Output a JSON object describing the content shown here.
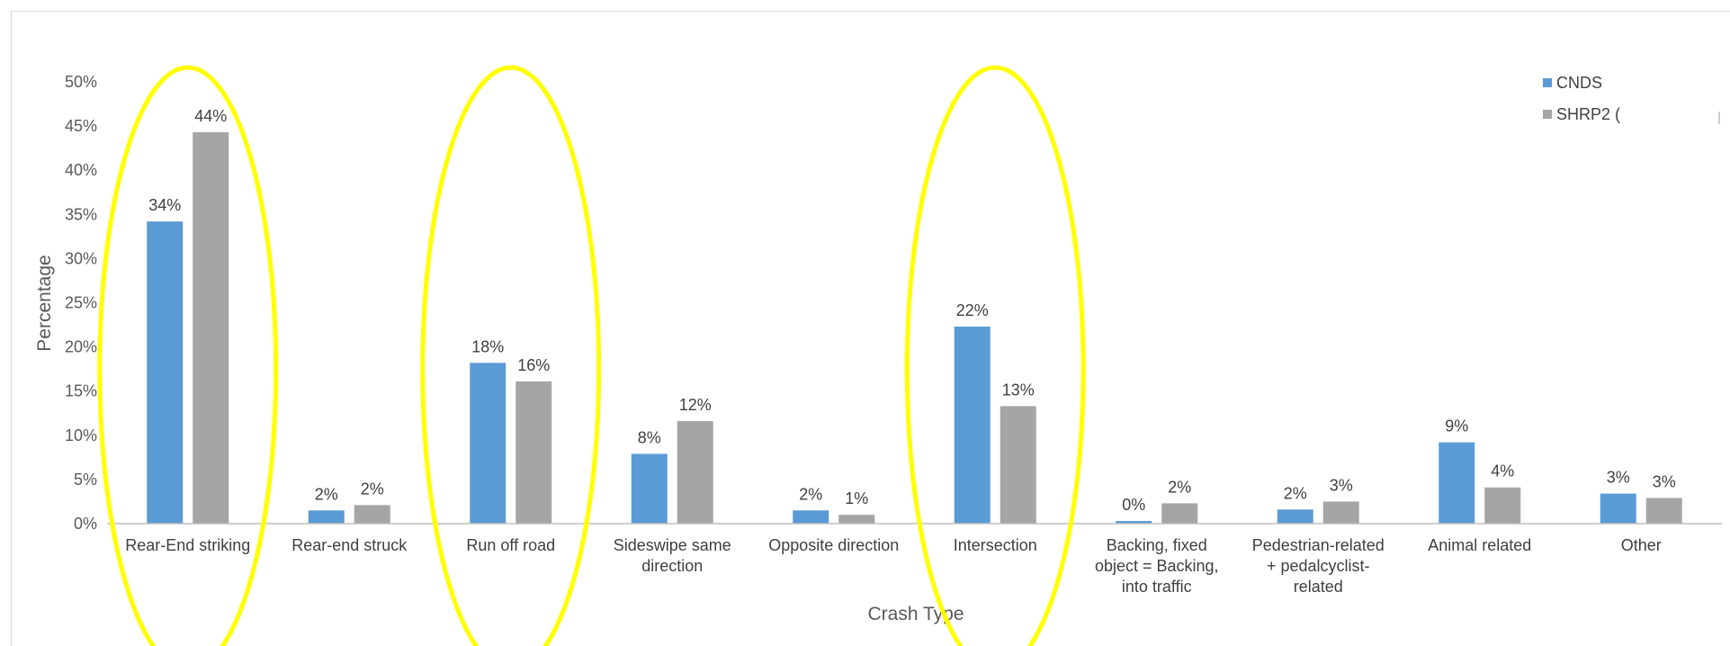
{
  "colors": {
    "CNDS": "#5b9bd5",
    "SHRP2": "#a5a5a5",
    "highlight": "#ffff00",
    "axis": "#bfbfbf"
  },
  "chart_data": {
    "type": "bar",
    "title": "",
    "xlabel": "Crash Type",
    "ylabel": "Percentage",
    "ylim": [
      0,
      50
    ],
    "yticks": [
      "0%",
      "5%",
      "10%",
      "15%",
      "20%",
      "25%",
      "30%",
      "35%",
      "40%",
      "45%",
      "50%"
    ],
    "grid": false,
    "legend_position": "top-right",
    "categories": [
      [
        "Rear-End striking"
      ],
      [
        "Rear-end struck"
      ],
      [
        "Run off road"
      ],
      [
        "Sideswipe same",
        "direction"
      ],
      [
        "Opposite direction"
      ],
      [
        "Intersection"
      ],
      [
        "Backing, fixed",
        "object = Backing,",
        "into traffic"
      ],
      [
        "Pedestrian-related",
        "+ pedalcyclist-",
        "related"
      ],
      [
        "Animal related"
      ],
      [
        "Other"
      ]
    ],
    "series": [
      {
        "name": "CNDS",
        "values": [
          34.2,
          1.5,
          18.2,
          7.9,
          1.5,
          22.3,
          0.3,
          1.6,
          9.2,
          3.4
        ],
        "labels": [
          "34%",
          "2%",
          "18%",
          "8%",
          "2%",
          "22%",
          "0%",
          "2%",
          "9%",
          "3%"
        ]
      },
      {
        "name": "SHRP2 (",
        "values": [
          44.3,
          2.1,
          16.1,
          11.6,
          1.0,
          13.3,
          2.3,
          2.5,
          4.1,
          2.9
        ],
        "labels": [
          "44%",
          "2%",
          "16%",
          "12%",
          "1%",
          "13%",
          "2%",
          "3%",
          "4%",
          "3%"
        ]
      }
    ],
    "highlighted_categories": [
      "Rear-End striking",
      "Run off road",
      "Intersection"
    ]
  }
}
